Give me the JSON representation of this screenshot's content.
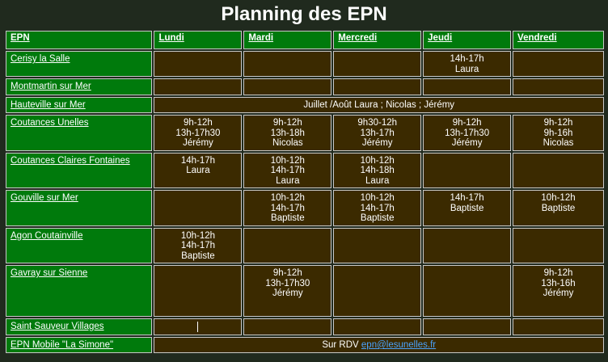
{
  "title": "Planning des EPN",
  "headers": [
    "EPN",
    "Lundi",
    "Mardi",
    "Mercredi",
    "Jeudi",
    "Vendredi"
  ],
  "rows": [
    {
      "name": "Cerisy la Salle",
      "cells": [
        [],
        [],
        [],
        [
          "14h-17h",
          "Laura"
        ],
        []
      ]
    },
    {
      "name": "Montmartin sur Mer",
      "cells": [
        [],
        [],
        [],
        [],
        []
      ]
    },
    {
      "name": "Hauteville sur Mer",
      "span_text": "Juillet /Août Laura ; Nicolas ; Jérémy"
    },
    {
      "name": "Coutances Unelles",
      "cells": [
        [
          "9h-12h",
          "13h-17h30",
          "Jérémy"
        ],
        [
          "9h-12h",
          "13h-18h",
          "Nicolas"
        ],
        [
          "9h30-12h",
          "13h-17h",
          "Jérémy"
        ],
        [
          "9h-12h",
          "13h-17h30",
          "Jérémy"
        ],
        [
          "9h-12h",
          "9h-16h",
          "Nicolas"
        ]
      ]
    },
    {
      "name": "Coutances Claires Fontaines",
      "cells": [
        [
          "14h-17h",
          "Laura"
        ],
        [
          "10h-12h",
          "14h-17h",
          "Laura"
        ],
        [
          "10h-12h",
          "14h-18h",
          "Laura"
        ],
        [],
        []
      ]
    },
    {
      "name": "Gouville sur Mer",
      "cells": [
        [],
        [
          "10h-12h",
          "14h-17h",
          "Baptiste"
        ],
        [
          "10h-12h",
          "14h-17h",
          "Baptiste"
        ],
        [
          "14h-17h",
          "Baptiste"
        ],
        [
          "10h-12h",
          "Baptiste"
        ]
      ]
    },
    {
      "name": "Agon Coutainville",
      "cells": [
        [
          "10h-12h",
          "14h-17h",
          "Baptiste"
        ],
        [],
        [],
        [],
        []
      ]
    },
    {
      "name": "Gavray sur Sienne",
      "cells": [
        [],
        [
          "9h-12h",
          "13h-17h30",
          "Jérémy"
        ],
        [],
        [],
        [
          "9h-12h",
          "13h-16h",
          "Jérémy"
        ]
      ]
    },
    {
      "name": "Saint Sauveur Villages",
      "cells": [
        [],
        [],
        [],
        [],
        []
      ],
      "caret_in_first": true
    },
    {
      "name": "EPN Mobile \"La Simone\"",
      "span_text": "Sur RDV ",
      "span_link": "epn@lesunelles.fr"
    }
  ]
}
